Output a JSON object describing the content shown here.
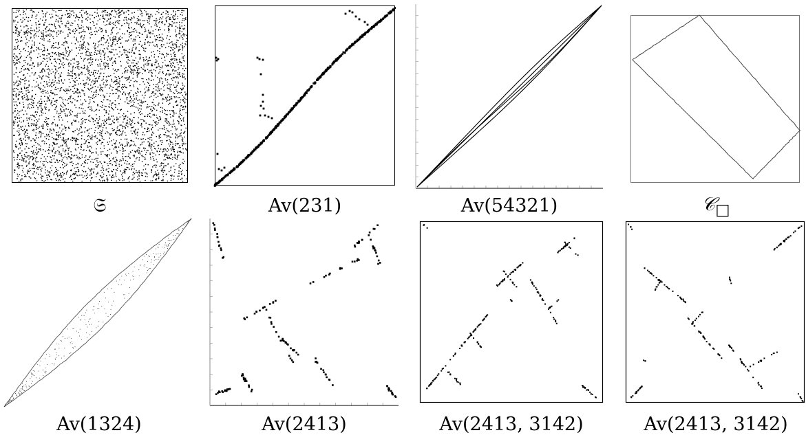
{
  "figure": {
    "panels": [
      {
        "id": "uniform",
        "caption": "𝔖"
      },
      {
        "id": "av231",
        "caption": "Av(231)"
      },
      {
        "id": "av54321",
        "caption": "Av(54321)"
      },
      {
        "id": "c-square",
        "caption_main": "𝒞",
        "caption_sub": "□"
      },
      {
        "id": "av1324",
        "caption": "Av(1324)"
      },
      {
        "id": "av2413",
        "caption": "Av(2413)"
      },
      {
        "id": "av2413-3142-a",
        "caption": "Av(2413, 3142)"
      },
      {
        "id": "av2413-3142-b",
        "caption": "Av(2413, 3142)"
      }
    ]
  },
  "colors": {
    "ink": "#000000",
    "frame": "#000000",
    "light_frame": "#777777"
  }
}
